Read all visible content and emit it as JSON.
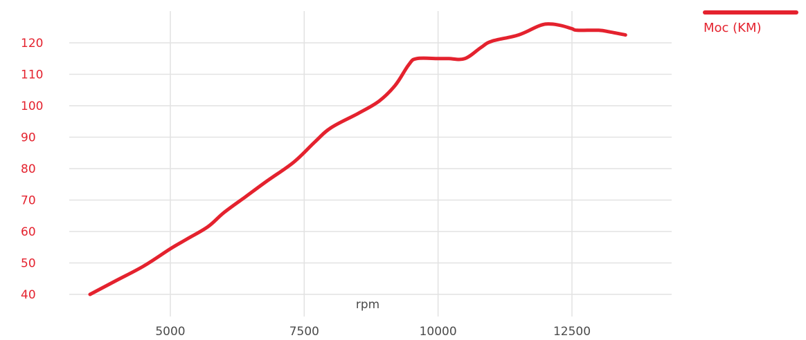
{
  "chart_data": {
    "type": "line",
    "title": "",
    "xlabel": "rpm",
    "ylabel": "",
    "xlim": [
      3000,
      14500
    ],
    "ylim": [
      40,
      125
    ],
    "xticks": [
      5000,
      7500,
      10000,
      12500
    ],
    "yticks": [
      40,
      50,
      60,
      70,
      80,
      90,
      100,
      110,
      120
    ],
    "grid": true,
    "legend_position": "top-right",
    "series": [
      {
        "name": "Moc (KM)",
        "color": "#e4222e",
        "x": [
          3500,
          4000,
          4500,
          5000,
          5300,
          5700,
          6000,
          6400,
          6800,
          7300,
          7700,
          8000,
          8500,
          8900,
          9200,
          9450,
          9600,
          10000,
          10200,
          10500,
          10800,
          11000,
          11500,
          11900,
          12100,
          12300,
          12500,
          12600,
          13000,
          13200,
          13500
        ],
        "y": [
          40,
          44.5,
          49,
          54.5,
          57.5,
          61.5,
          66,
          71,
          76,
          82,
          88.5,
          93,
          97.5,
          101.5,
          106.5,
          113,
          115,
          115,
          115,
          115,
          118.5,
          120.5,
          122.5,
          125.5,
          126,
          125.5,
          124.5,
          124,
          124,
          123.5,
          122.5
        ]
      }
    ]
  }
}
